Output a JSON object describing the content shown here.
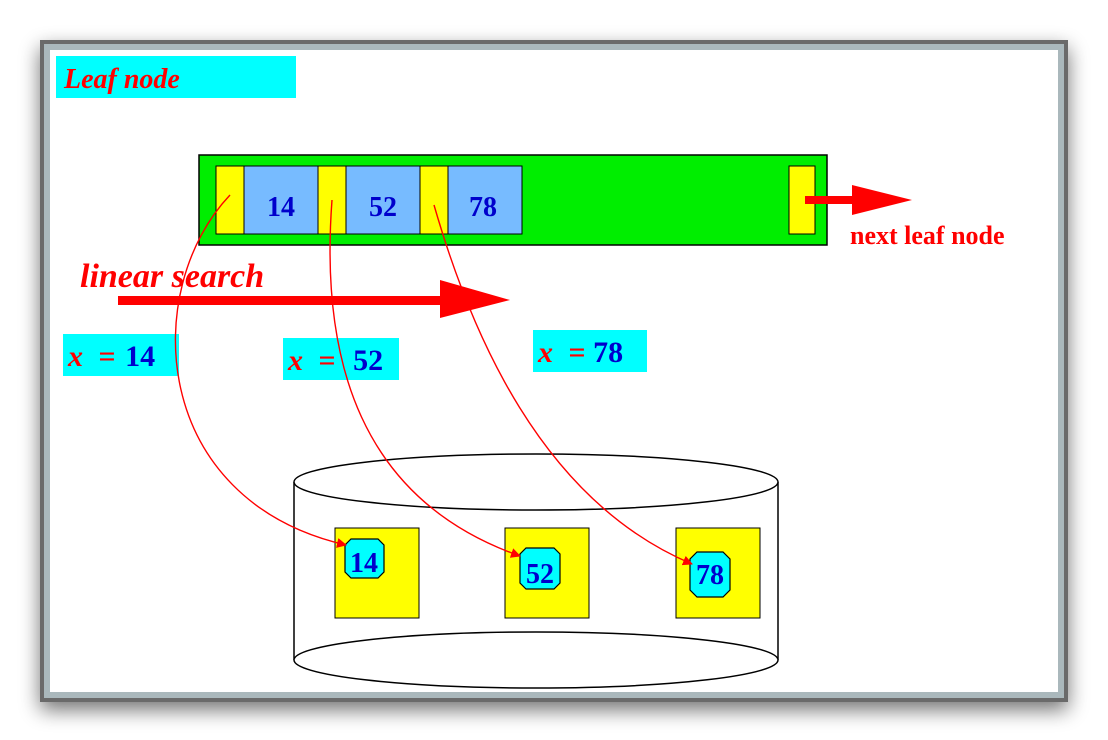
{
  "title": "Leaf node",
  "leaf_node": {
    "keys": [
      "14",
      "52",
      "78"
    ],
    "next_label": "next leaf node"
  },
  "linear_search_label": "linear search",
  "searches": [
    {
      "var": "x",
      "eq": "=",
      "value": "14"
    },
    {
      "var": "x",
      "eq": "=",
      "value": "52"
    },
    {
      "var": "x",
      "eq": "=",
      "value": "78"
    }
  ],
  "disk": {
    "records": [
      "14",
      "52",
      "78"
    ]
  },
  "colors": {
    "label_bg": "#00ffff",
    "label_text": "#ff0000",
    "key_text": "#0000cc",
    "node_bg": "#00ee00",
    "pointer_cell": "#ffff00",
    "key_cell": "#77bbff",
    "arrow": "#ff0000",
    "record_bg": "#ffff00",
    "record_key_bg": "#00ffff",
    "frame_border": "#555555",
    "panel_bg": "#ffffff"
  }
}
